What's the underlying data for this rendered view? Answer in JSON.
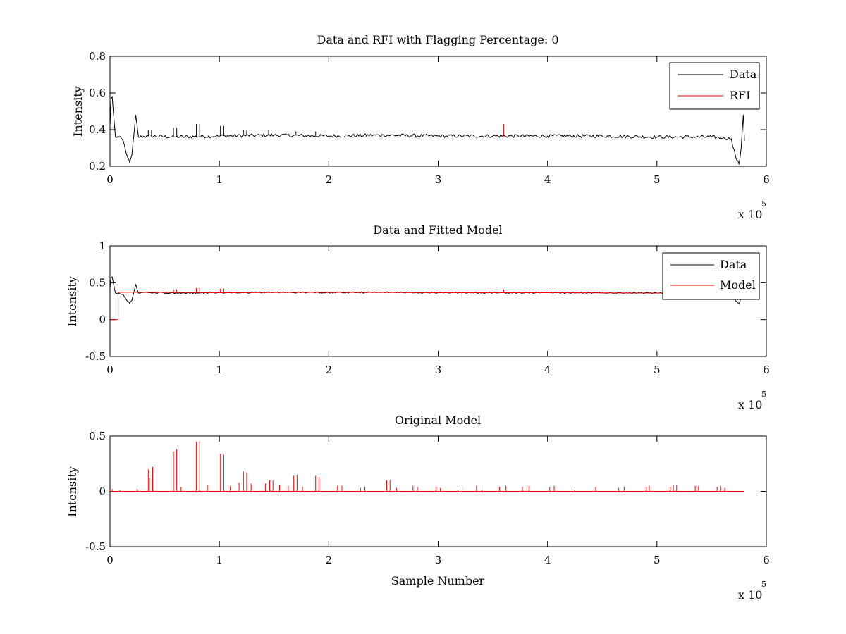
{
  "chart_data": [
    {
      "type": "line",
      "title": "Data and RFI with Flagging Percentage: 0",
      "xlabel": "",
      "ylabel": "Intensity",
      "xlim": [
        0,
        600000
      ],
      "ylim": [
        0.2,
        0.8
      ],
      "xticks": [
        0,
        1,
        2,
        3,
        4,
        5,
        6
      ],
      "yticks": [
        0.2,
        0.4,
        0.6,
        0.8
      ],
      "xtick_labels": [
        "0",
        "1",
        "2",
        "3",
        "4",
        "5",
        "6"
      ],
      "ytick_labels": [
        "0.2",
        "0.4",
        "0.6",
        "0.8"
      ],
      "x_exponent_text": "x 10",
      "x_exponent_power": "5",
      "legend": {
        "position": "top-right",
        "entries": [
          "Data",
          "RFI"
        ]
      },
      "series": [
        {
          "name": "Data",
          "color": "#000000",
          "x": [
            0,
            1000,
            2000,
            3000,
            5000,
            8000,
            12000,
            16000,
            18000,
            20000,
            22000,
            23500,
            26000,
            35000,
            60000,
            100000,
            150000,
            200000,
            250000,
            300000,
            350000,
            400000,
            450000,
            500000,
            550000,
            568000,
            572000,
            575000,
            577000,
            579000,
            580000
          ],
          "y": [
            0.42,
            0.57,
            0.58,
            0.5,
            0.36,
            0.36,
            0.34,
            0.25,
            0.22,
            0.26,
            0.38,
            0.48,
            0.36,
            0.365,
            0.36,
            0.365,
            0.37,
            0.365,
            0.37,
            0.365,
            0.365,
            0.365,
            0.365,
            0.36,
            0.36,
            0.35,
            0.25,
            0.21,
            0.3,
            0.48,
            0.34
          ],
          "spikes": [
            {
              "x": 25000,
              "y": 0.4
            },
            {
              "x": 35000,
              "y": 0.4
            },
            {
              "x": 38000,
              "y": 0.4
            },
            {
              "x": 58000,
              "y": 0.41
            },
            {
              "x": 61000,
              "y": 0.41
            },
            {
              "x": 79000,
              "y": 0.43
            },
            {
              "x": 82000,
              "y": 0.43
            },
            {
              "x": 101000,
              "y": 0.42
            },
            {
              "x": 104000,
              "y": 0.42
            },
            {
              "x": 122000,
              "y": 0.4
            },
            {
              "x": 125000,
              "y": 0.4
            },
            {
              "x": 145000,
              "y": 0.4
            },
            {
              "x": 170000,
              "y": 0.39
            },
            {
              "x": 188000,
              "y": 0.39
            }
          ]
        },
        {
          "name": "RFI",
          "color": "#ff0000",
          "x": [
            360000,
            360000
          ],
          "y": [
            0.36,
            0.43
          ]
        }
      ]
    },
    {
      "type": "line",
      "title": "Data and Fitted Model",
      "xlabel": "",
      "ylabel": "Intensity",
      "xlim": [
        0,
        600000
      ],
      "ylim": [
        -0.5,
        1
      ],
      "xticks": [
        0,
        1,
        2,
        3,
        4,
        5,
        6
      ],
      "yticks": [
        -0.5,
        0,
        0.5,
        1
      ],
      "xtick_labels": [
        "0",
        "1",
        "2",
        "3",
        "4",
        "5",
        "6"
      ],
      "ytick_labels": [
        "-0.5",
        "0",
        "0.5",
        "1"
      ],
      "x_exponent_text": "x 10",
      "x_exponent_power": "5",
      "legend": {
        "position": "top-right",
        "entries": [
          "Data",
          "Model"
        ]
      },
      "series": [
        {
          "name": "Data",
          "color": "#000000",
          "x": [
            0,
            1000,
            2000,
            3000,
            5000,
            8000,
            12000,
            16000,
            18000,
            20000,
            22000,
            23500,
            26000,
            35000,
            60000,
            100000,
            150000,
            200000,
            250000,
            300000,
            350000,
            400000,
            450000,
            500000,
            550000,
            568000,
            572000,
            575000,
            577000,
            579000,
            580000
          ],
          "y": [
            0.42,
            0.57,
            0.58,
            0.5,
            0.36,
            0.36,
            0.34,
            0.25,
            0.22,
            0.26,
            0.38,
            0.48,
            0.36,
            0.365,
            0.36,
            0.365,
            0.37,
            0.365,
            0.37,
            0.365,
            0.365,
            0.365,
            0.365,
            0.36,
            0.36,
            0.35,
            0.25,
            0.21,
            0.3,
            0.48,
            0.34
          ]
        },
        {
          "name": "Model",
          "color": "#ff0000",
          "x": [
            0,
            7500,
            7500,
            8000,
            30000,
            100000,
            200000,
            300000,
            400000,
            500000,
            580000
          ],
          "y": [
            0,
            0,
            0.36,
            0.37,
            0.37,
            0.365,
            0.37,
            0.365,
            0.365,
            0.36,
            0.36
          ],
          "spikes": [
            {
              "x": 58000,
              "y": 0.41
            },
            {
              "x": 61000,
              "y": 0.41
            },
            {
              "x": 79000,
              "y": 0.43
            },
            {
              "x": 82000,
              "y": 0.43
            },
            {
              "x": 101000,
              "y": 0.42
            },
            {
              "x": 104000,
              "y": 0.42
            },
            {
              "x": 360000,
              "y": 0.41
            }
          ]
        }
      ]
    },
    {
      "type": "line",
      "title": "Original Model",
      "xlabel": "Sample Number",
      "ylabel": "Intensity",
      "xlim": [
        0,
        600000
      ],
      "ylim": [
        -0.5,
        0.5
      ],
      "xticks": [
        0,
        1,
        2,
        3,
        4,
        5,
        6
      ],
      "yticks": [
        -0.5,
        0,
        0.5
      ],
      "xtick_labels": [
        "0",
        "1",
        "2",
        "3",
        "4",
        "5",
        "6"
      ],
      "ytick_labels": [
        "-0.5",
        "0",
        "0.5"
      ],
      "x_exponent_text": "x 10",
      "x_exponent_power": "5",
      "series": [
        {
          "color": "#ff0000",
          "x": [
            0,
            580000
          ],
          "y": [
            0,
            0
          ],
          "spikes": [
            {
              "x": 2000,
              "y": 0.02
            },
            {
              "x": 9000,
              "y": 0.01
            },
            {
              "x": 25000,
              "y": 0.02
            },
            {
              "x": 35000,
              "y": 0.2
            },
            {
              "x": 36000,
              "y": 0.12
            },
            {
              "x": 39000,
              "y": 0.22
            },
            {
              "x": 58000,
              "y": 0.36
            },
            {
              "x": 61000,
              "y": 0.38
            },
            {
              "x": 65000,
              "y": 0.04
            },
            {
              "x": 79000,
              "y": 0.45
            },
            {
              "x": 82000,
              "y": 0.45
            },
            {
              "x": 89000,
              "y": 0.06
            },
            {
              "x": 101000,
              "y": 0.34
            },
            {
              "x": 104000,
              "y": 0.33
            },
            {
              "x": 110000,
              "y": 0.05
            },
            {
              "x": 118000,
              "y": 0.08
            },
            {
              "x": 122000,
              "y": 0.18
            },
            {
              "x": 125000,
              "y": 0.17
            },
            {
              "x": 129000,
              "y": 0.07
            },
            {
              "x": 142000,
              "y": 0.07
            },
            {
              "x": 146000,
              "y": 0.1
            },
            {
              "x": 149000,
              "y": 0.1
            },
            {
              "x": 155000,
              "y": 0.06
            },
            {
              "x": 163000,
              "y": 0.05
            },
            {
              "x": 168000,
              "y": 0.14
            },
            {
              "x": 171000,
              "y": 0.15
            },
            {
              "x": 176000,
              "y": 0.04
            },
            {
              "x": 188000,
              "y": 0.14
            },
            {
              "x": 191000,
              "y": 0.13
            },
            {
              "x": 208000,
              "y": 0.05
            },
            {
              "x": 212000,
              "y": 0.05
            },
            {
              "x": 229000,
              "y": 0.03
            },
            {
              "x": 233000,
              "y": 0.04
            },
            {
              "x": 253000,
              "y": 0.1
            },
            {
              "x": 256000,
              "y": 0.1
            },
            {
              "x": 262000,
              "y": 0.03
            },
            {
              "x": 277000,
              "y": 0.05
            },
            {
              "x": 281000,
              "y": 0.04
            },
            {
              "x": 298000,
              "y": 0.04
            },
            {
              "x": 302000,
              "y": 0.03
            },
            {
              "x": 318000,
              "y": 0.05
            },
            {
              "x": 322000,
              "y": 0.04
            },
            {
              "x": 335000,
              "y": 0.05
            },
            {
              "x": 340000,
              "y": 0.06
            },
            {
              "x": 356000,
              "y": 0.04
            },
            {
              "x": 362000,
              "y": 0.05
            },
            {
              "x": 377000,
              "y": 0.04
            },
            {
              "x": 383000,
              "y": 0.05
            },
            {
              "x": 402000,
              "y": 0.04
            },
            {
              "x": 406000,
              "y": 0.05
            },
            {
              "x": 425000,
              "y": 0.04
            },
            {
              "x": 444000,
              "y": 0.04
            },
            {
              "x": 465000,
              "y": 0.03
            },
            {
              "x": 470000,
              "y": 0.04
            },
            {
              "x": 490000,
              "y": 0.04
            },
            {
              "x": 493000,
              "y": 0.05
            },
            {
              "x": 512000,
              "y": 0.04
            },
            {
              "x": 515000,
              "y": 0.06
            },
            {
              "x": 518000,
              "y": 0.06
            },
            {
              "x": 535000,
              "y": 0.05
            },
            {
              "x": 538000,
              "y": 0.05
            },
            {
              "x": 555000,
              "y": 0.04
            },
            {
              "x": 558000,
              "y": 0.05
            },
            {
              "x": 562000,
              "y": 0.03
            }
          ]
        }
      ]
    }
  ]
}
